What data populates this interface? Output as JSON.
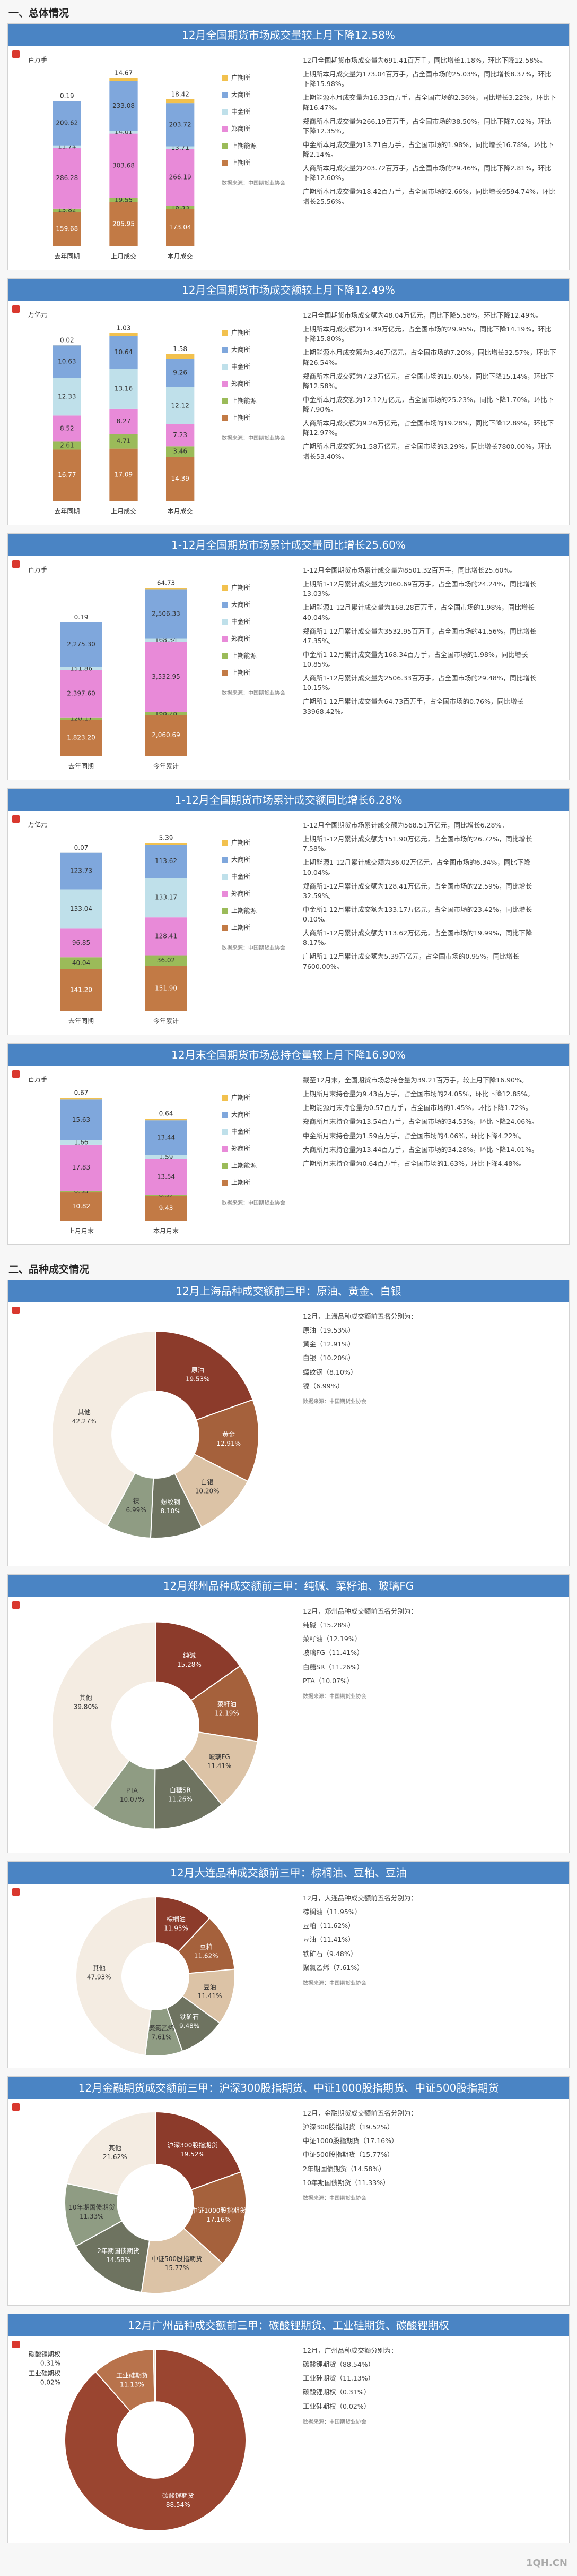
{
  "section_1": "一、总体情况",
  "section_2": "二、品种成交情况",
  "watermark": "1QH.CN",
  "chart_data": [
    {
      "type": "bar",
      "title": "12月全国期货市场成交量较上月下降12.58%",
      "y_label": "百万手",
      "source": "数据来源：中国期货业协会",
      "categories": [
        "去年同期",
        "上月成交",
        "本月成交"
      ],
      "series": [
        {
          "name": "上期所",
          "color": "#c27a45",
          "values": [
            159.68,
            205.95,
            173.04
          ]
        },
        {
          "name": "上期能源",
          "color": "#9bbb59",
          "values": [
            15.82,
            19.55,
            16.33
          ]
        },
        {
          "name": "郑商所",
          "color": "#e88ad8",
          "values": [
            286.28,
            303.68,
            266.19
          ]
        },
        {
          "name": "中金所",
          "color": "#bfe0ea",
          "values": [
            11.74,
            14.01,
            13.71
          ]
        },
        {
          "name": "大商所",
          "color": "#7fa7dc",
          "values": [
            209.62,
            233.08,
            203.72
          ]
        },
        {
          "name": "广期所",
          "color": "#f2c14e",
          "values": [
            0.19,
            14.67,
            18.42
          ]
        }
      ],
      "notes": [
        "12月全国期货市场成交量为691.41百万手，同比增长1.18%，环比下降12.58%。",
        "上期所本月成交量为173.04百万手，占全国市场的25.03%，同比增长8.37%，环比下降15.98%。",
        "上期能源本月成交量为16.33百万手，占全国市场的2.36%，同比增长3.22%，环比下降16.47%。",
        "郑商所本月成交量为266.19百万手，占全国市场的38.50%，同比下降7.02%，环比下降12.35%。",
        "中金所本月成交量为13.71百万手，占全国市场的1.98%，同比增长16.78%，环比下降2.14%。",
        "大商所本月成交量为203.72百万手，占全国市场的29.46%，同比下降2.81%，环比下降12.60%。",
        "广期所本月成交量为18.42百万手，占全国市场的2.66%，同比增长9594.74%，环比增长25.56%。"
      ]
    },
    {
      "type": "bar",
      "title": "12月全国期货市场成交额较上月下降12.49%",
      "y_label": "万亿元",
      "source": "数据来源：中国期货业协会",
      "categories": [
        "去年同期",
        "上月成交",
        "本月成交"
      ],
      "series": [
        {
          "name": "上期所",
          "color": "#c27a45",
          "values": [
            16.77,
            17.09,
            14.39
          ]
        },
        {
          "name": "上期能源",
          "color": "#9bbb59",
          "values": [
            2.61,
            4.71,
            3.46
          ]
        },
        {
          "name": "郑商所",
          "color": "#e88ad8",
          "values": [
            8.52,
            8.27,
            7.23
          ]
        },
        {
          "name": "中金所",
          "color": "#bfe0ea",
          "values": [
            12.33,
            13.16,
            12.12
          ]
        },
        {
          "name": "大商所",
          "color": "#7fa7dc",
          "values": [
            10.63,
            10.64,
            9.26
          ]
        },
        {
          "name": "广期所",
          "color": "#f2c14e",
          "values": [
            0.02,
            1.03,
            1.58
          ]
        }
      ],
      "notes": [
        "12月全国期货市场成交额为48.04万亿元，同比下降5.58%，环比下降12.49%。",
        "上期所本月成交额为14.39万亿元，占全国市场的29.95%，同比下降14.19%，环比下降15.80%。",
        "上期能源本月成交额为3.46万亿元，占全国市场的7.20%，同比增长32.57%，环比下降26.54%。",
        "郑商所本月成交额为7.23万亿元，占全国市场的15.05%，同比下降15.14%，环比下降12.58%。",
        "中金所本月成交额为12.12万亿元，占全国市场的25.23%，同比下降1.70%，环比下降7.90%。",
        "大商所本月成交额为9.26万亿元，占全国市场的19.28%，同比下降12.89%，环比下降12.97%。",
        "广期所本月成交额为1.58万亿元，占全国市场的3.29%，同比增长7800.00%，环比增长53.40%。"
      ]
    },
    {
      "type": "bar",
      "title": "1-12月全国期货市场累计成交量同比增长25.60%",
      "y_label": "百万手",
      "source": "数据来源：中国期货业协会",
      "categories": [
        "去年同期",
        "今年累计"
      ],
      "series": [
        {
          "name": "上期所",
          "color": "#c27a45",
          "values": [
            1823.2,
            2060.69
          ],
          "value_labels": [
            "1,823.20",
            "2,060.69"
          ]
        },
        {
          "name": "上期能源",
          "color": "#9bbb59",
          "values": [
            120.17,
            168.28
          ],
          "value_labels": [
            "120.17",
            "168.28"
          ]
        },
        {
          "name": "郑商所",
          "color": "#e88ad8",
          "values": [
            2397.6,
            3532.95
          ],
          "value_labels": [
            "2,397.60",
            "3,532.95"
          ]
        },
        {
          "name": "中金所",
          "color": "#bfe0ea",
          "values": [
            151.86,
            168.34
          ],
          "value_labels": [
            "151.86",
            "168.34"
          ]
        },
        {
          "name": "大商所",
          "color": "#7fa7dc",
          "values": [
            2275.3,
            2506.33
          ],
          "value_labels": [
            "2,275.30",
            "2,506.33"
          ]
        },
        {
          "name": "广期所",
          "color": "#f2c14e",
          "values": [
            0.19,
            64.73
          ],
          "value_labels": [
            "0.19",
            "64.73"
          ]
        }
      ],
      "notes": [
        "1-12月全国期货市场累计成交量为8501.32百万手，同比增长25.60%。",
        "上期所1-12月累计成交量为2060.69百万手，占全国市场的24.24%，同比增长13.03%。",
        "上期能源1-12月累计成交量为168.28百万手，占全国市场的1.98%，同比增长40.04%。",
        "郑商所1-12月累计成交量为3532.95百万手，占全国市场的41.56%，同比增长47.35%。",
        "中金所1-12月累计成交量为168.34百万手，占全国市场的1.98%，同比增长10.85%。",
        "大商所1-12月累计成交量为2506.33百万手，占全国市场的29.48%，同比增长10.15%。",
        "广期所1-12月累计成交量为64.73百万手，占全国市场的0.76%，同比增长33968.42%。"
      ]
    },
    {
      "type": "bar",
      "title": "1-12月全国期货市场累计成交额同比增长6.28%",
      "y_label": "万亿元",
      "source": "数据来源：中国期货业协会",
      "categories": [
        "去年同期",
        "今年累计"
      ],
      "series": [
        {
          "name": "上期所",
          "color": "#c27a45",
          "values": [
            141.2,
            151.9
          ],
          "value_labels": [
            "141.20",
            "151.90"
          ]
        },
        {
          "name": "上期能源",
          "color": "#9bbb59",
          "values": [
            40.04,
            36.02
          ],
          "value_labels": [
            "40.04",
            "36.02"
          ]
        },
        {
          "name": "郑商所",
          "color": "#e88ad8",
          "values": [
            96.85,
            128.41
          ],
          "value_labels": [
            "96.85",
            "128.41"
          ]
        },
        {
          "name": "中金所",
          "color": "#bfe0ea",
          "values": [
            133.04,
            133.17
          ],
          "value_labels": [
            "133.04",
            "133.17"
          ]
        },
        {
          "name": "大商所",
          "color": "#7fa7dc",
          "values": [
            123.73,
            113.62
          ],
          "value_labels": [
            "123.73",
            "113.62"
          ]
        },
        {
          "name": "广期所",
          "color": "#f2c14e",
          "values": [
            0.07,
            5.39
          ],
          "value_labels": [
            "0.07",
            "5.39"
          ]
        }
      ],
      "notes": [
        "1-12月全国期货市场累计成交额为568.51万亿元，同比增长6.28%。",
        "上期所1-12月累计成交额为151.90万亿元，占全国市场的26.72%，同比增长7.58%。",
        "上期能源1-12月累计成交额为36.02万亿元，占全国市场的6.34%，同比下降10.04%。",
        "郑商所1-12月累计成交额为128.41万亿元，占全国市场的22.59%，同比增长32.59%。",
        "中金所1-12月累计成交额为133.17万亿元，占全国市场的23.42%，同比增长0.10%。",
        "大商所1-12月累计成交额为113.62万亿元，占全国市场的19.99%，同比下降8.17%。",
        "广期所1-12月累计成交额为5.39万亿元，占全国市场的0.95%，同比增长7600.00%。"
      ]
    },
    {
      "type": "bar",
      "title": "12月末全国期货市场总持仓量较上月下降16.90%",
      "y_label": "百万手",
      "source": "数据来源：中国期货业协会",
      "categories": [
        "上月月末",
        "本月月末"
      ],
      "series": [
        {
          "name": "上期所",
          "color": "#c27a45",
          "values": [
            10.82,
            9.43
          ]
        },
        {
          "name": "上期能源",
          "color": "#9bbb59",
          "values": [
            0.58,
            0.57
          ]
        },
        {
          "name": "郑商所",
          "color": "#e88ad8",
          "values": [
            17.83,
            13.54
          ]
        },
        {
          "name": "中金所",
          "color": "#bfe0ea",
          "values": [
            1.66,
            1.59
          ]
        },
        {
          "name": "大商所",
          "color": "#7fa7dc",
          "values": [
            15.63,
            13.44
          ]
        },
        {
          "name": "广期所",
          "color": "#f2c14e",
          "values": [
            0.67,
            0.64
          ]
        }
      ],
      "notes": [
        "截至12月末，全国期货市场总持仓量为39.21百万手，较上月下降16.90%。",
        "上期所月末持仓量为9.43百万手，占全国市场的24.05%，环比下降12.85%。",
        "上期能源月末持仓量为0.57百万手，占全国市场的1.45%，环比下降1.72%。",
        "郑商所月末持仓量为13.54百万手，占全国市场的34.53%，环比下降24.06%。",
        "中金所月末持仓量为1.59百万手，占全国市场的4.06%，环比下降4.22%。",
        "大商所月末持仓量为13.44百万手，占全国市场的34.28%，环比下降14.01%。",
        "广期所月末持仓量为0.64百万手，占全国市场的1.63%，环比下降4.48%。"
      ]
    },
    {
      "type": "donut",
      "title": "12月上海品种成交额前三甲：原油、黄金、白银",
      "source": "数据来源：中国期货业协会",
      "categories": [
        "原油",
        "黄金",
        "白银",
        "螺纹钢",
        "镍",
        "其他"
      ],
      "values": [
        19.53,
        12.91,
        10.2,
        8.1,
        6.99,
        42.27
      ],
      "value_labels": [
        "19.53%",
        "12.91%",
        "10.20%",
        "8.10%",
        "6.99%",
        "42.27%"
      ],
      "colors": [
        "#8c3b2b",
        "#a5613c",
        "#dcc3a6",
        "#6e7360",
        "#8f9c83",
        "#f4ece2"
      ],
      "notes": [
        "12月，上海品种成交额前五名分别为：",
        "原油（19.53%）",
        "黄金（12.91%）",
        "白银（10.20%）",
        "螺纹钢（8.10%）",
        "镍（6.99%）"
      ]
    },
    {
      "type": "donut",
      "title": "12月郑州品种成交额前三甲：纯碱、菜籽油、玻璃FG",
      "source": "数据来源：中国期货业协会",
      "categories": [
        "纯碱",
        "菜籽油",
        "玻璃FG",
        "白糖SR",
        "PTA",
        "其他"
      ],
      "values": [
        15.28,
        12.19,
        11.41,
        11.26,
        10.07,
        39.8
      ],
      "value_labels": [
        "15.28%",
        "12.19%",
        "11.41%",
        "11.26%",
        "10.07%",
        "39.80%"
      ],
      "colors": [
        "#8c3b2b",
        "#a5613c",
        "#dcc3a6",
        "#6e7360",
        "#8f9c83",
        "#f4ece2"
      ],
      "notes": [
        "12月，郑州品种成交额前五名分别为：",
        "纯碱（15.28%）",
        "菜籽油（12.19%）",
        "玻璃FG（11.41%）",
        "白糖SR（11.26%）",
        "PTA（10.07%）"
      ]
    },
    {
      "type": "donut",
      "title": "12月大连品种成交额前三甲：棕榈油、豆粕、豆油",
      "source": "数据来源：中国期货业协会",
      "categories": [
        "棕榈油",
        "豆粕",
        "豆油",
        "铁矿石",
        "聚氯乙烯",
        "其他"
      ],
      "values": [
        11.95,
        11.62,
        11.41,
        9.48,
        7.61,
        47.93
      ],
      "value_labels": [
        "11.95%",
        "11.62%",
        "11.41%",
        "9.48%",
        "7.61%",
        "47.93%"
      ],
      "colors": [
        "#8c3b2b",
        "#a5613c",
        "#dcc3a6",
        "#6e7360",
        "#8f9c83",
        "#f4ece2"
      ],
      "notes": [
        "12月，大连品种成交额前五名分别为：",
        "棕榈油（11.95%）",
        "豆粕（11.62%）",
        "豆油（11.41%）",
        "铁矿石（9.48%）",
        "聚氯乙烯（7.61%）"
      ]
    },
    {
      "type": "donut",
      "title": "12月金融期货成交额前三甲：沪深300股指期货、中证1000股指期货、中证500股指期货",
      "source": "数据来源：中国期货业协会",
      "categories": [
        "沪深300股指期货",
        "中证1000股指期货",
        "中证500股指期货",
        "2年期国债期货",
        "10年期国债期货",
        "其他"
      ],
      "values": [
        19.52,
        17.16,
        15.77,
        14.58,
        11.33,
        21.62
      ],
      "value_labels": [
        "19.52%",
        "17.16%",
        "15.77%",
        "14.58%",
        "11.33%",
        "21.62%"
      ],
      "colors": [
        "#8c3b2b",
        "#a5613c",
        "#dcc3a6",
        "#6e7360",
        "#8f9c83",
        "#f4ece2"
      ],
      "notes": [
        "12月，金融期货成交额前五名分别为：",
        "沪深300股指期货（19.52%）",
        "中证1000股指期货（17.16%）",
        "中证500股指期货（15.77%）",
        "2年期国债期货（14.58%）",
        "10年期国债期货（11.33%）"
      ]
    },
    {
      "type": "donut",
      "title": "12月广州品种成交额前三甲：碳酸锂期货、工业硅期货、碳酸锂期权",
      "source": "数据来源：中国期货业协会",
      "categories": [
        "碳酸锂期货",
        "工业硅期货",
        "碳酸锂期权",
        "工业硅期权"
      ],
      "values": [
        88.54,
        11.13,
        0.31,
        0.02
      ],
      "value_labels": [
        "88.54%",
        "11.13%",
        "0.31%",
        "0.02%"
      ],
      "colors": [
        "#9a4530",
        "#b8734c",
        "#e2cdb2",
        "#f4ece2"
      ],
      "notes": [
        "12月，广州品种成交额分别为：",
        "碳酸锂期货（88.54%）",
        "工业硅期货（11.13%）",
        "碳酸锂期权（0.31%）",
        "工业硅期权（0.02%）"
      ]
    }
  ]
}
